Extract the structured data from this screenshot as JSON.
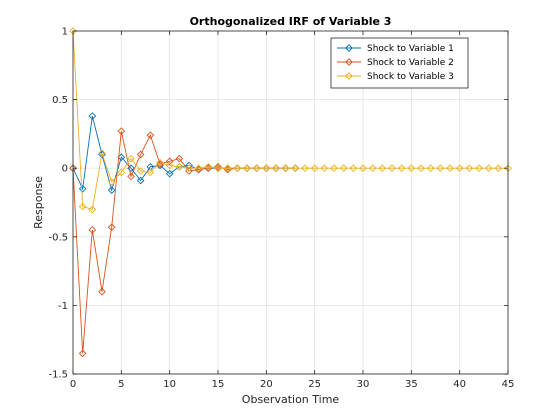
{
  "chart_data": {
    "type": "line",
    "title": "Orthogonalized IRF of Variable 3",
    "xlabel": "Observation Time",
    "ylabel": "Response",
    "xlim": [
      0,
      45
    ],
    "ylim": [
      -1.5,
      1
    ],
    "xticks": [
      0,
      5,
      10,
      15,
      20,
      25,
      30,
      35,
      40,
      45
    ],
    "yticks": [
      -1.5,
      -1,
      -0.5,
      0,
      0.5,
      1
    ],
    "ytick_labels": [
      "-1.5",
      "-1",
      "-0.5",
      "0",
      "0.5",
      "1"
    ],
    "grid": true,
    "legend_position": "top-right",
    "marker": "diamond",
    "series": [
      {
        "name": "Shock to Variable 1",
        "color": "#0072BD",
        "x": [
          0,
          1,
          2,
          3,
          4,
          5,
          6,
          7,
          8,
          9,
          10,
          11,
          12,
          13,
          14,
          15,
          16,
          17,
          18,
          19,
          20,
          21,
          22,
          23
        ],
        "y": [
          0.0,
          -0.15,
          0.38,
          0.1,
          -0.16,
          0.08,
          0.0,
          -0.09,
          0.01,
          0.02,
          -0.04,
          0.01,
          0.02,
          -0.01,
          0.0,
          0.0,
          0.0,
          0.0,
          0.0,
          0.0,
          0.0,
          0.0,
          0.0,
          0.0
        ]
      },
      {
        "name": "Shock to Variable 2",
        "color": "#D95319",
        "x": [
          0,
          1,
          2,
          3,
          4,
          5,
          6,
          7,
          8,
          9,
          10,
          11,
          12,
          13,
          14,
          15,
          16,
          17,
          18,
          19,
          20,
          21,
          22,
          23
        ],
        "y": [
          0.0,
          -1.35,
          -0.45,
          -0.9,
          -0.43,
          0.27,
          -0.06,
          0.1,
          0.24,
          0.03,
          0.05,
          0.07,
          -0.02,
          -0.01,
          0.0,
          0.01,
          -0.01,
          0.0,
          0.0,
          0.0,
          0.0,
          0.0,
          0.0,
          0.0
        ]
      },
      {
        "name": "Shock to Variable 3",
        "color": "#EDB120",
        "x": [
          0,
          1,
          2,
          3,
          4,
          5,
          6,
          7,
          8,
          9,
          10,
          11,
          12,
          13,
          14,
          15,
          16,
          17,
          18,
          19,
          20,
          21,
          22,
          23,
          24,
          25,
          26,
          27,
          28,
          29,
          30,
          31,
          32,
          33,
          34,
          35,
          36,
          37,
          38,
          39,
          40,
          41,
          42,
          43,
          44,
          45
        ],
        "y": [
          1.0,
          -0.28,
          -0.3,
          0.11,
          -0.1,
          -0.03,
          0.07,
          -0.02,
          -0.03,
          0.04,
          0.02,
          0.01,
          0.0,
          0.0,
          0.01,
          0.0,
          0.0,
          0.0,
          0.0,
          0.0,
          0.0,
          0.0,
          0.0,
          0.0,
          0.0,
          0.0,
          0.0,
          0.0,
          0.0,
          0.0,
          0.0,
          0.0,
          0.0,
          0.0,
          0.0,
          0.0,
          0.0,
          0.0,
          0.0,
          0.0,
          0.0,
          0.0,
          0.0,
          0.0,
          0.0,
          0.0
        ]
      }
    ]
  }
}
